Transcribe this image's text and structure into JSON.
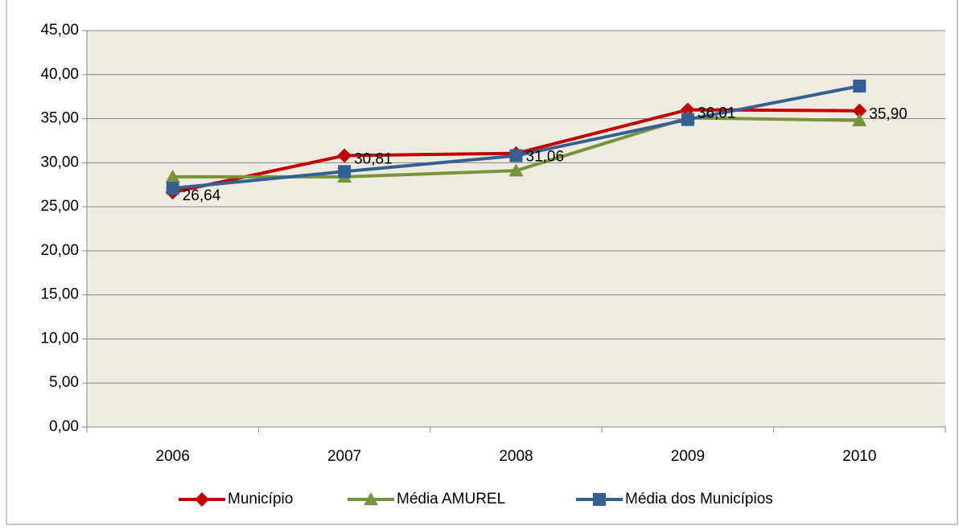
{
  "chart_data": {
    "type": "line",
    "categories": [
      "2006",
      "2007",
      "2008",
      "2009",
      "2010"
    ],
    "series": [
      {
        "name": "Município",
        "color": "#c00000",
        "marker": "diamond",
        "values": [
          26.64,
          30.81,
          31.06,
          36.01,
          35.9
        ],
        "value_labels": [
          "26,64",
          "30,81",
          "31,06",
          "36,01",
          "35,90"
        ]
      },
      {
        "name": "Média AMUREL",
        "color": "#77933c",
        "marker": "triangle",
        "values": [
          28.4,
          28.4,
          29.1,
          35.1,
          34.8
        ]
      },
      {
        "name": "Média dos Municípios",
        "color": "#376092",
        "marker": "square",
        "values": [
          27.1,
          29.0,
          30.8,
          34.9,
          38.7
        ]
      }
    ],
    "ylim": [
      0,
      45
    ],
    "yticks": [
      {
        "value": 0,
        "label": "0,00"
      },
      {
        "value": 5,
        "label": "5,00"
      },
      {
        "value": 10,
        "label": "10,00"
      },
      {
        "value": 15,
        "label": "15,00"
      },
      {
        "value": 20,
        "label": "20,00"
      },
      {
        "value": 25,
        "label": "25,00"
      },
      {
        "value": 30,
        "label": "30,00"
      },
      {
        "value": 35,
        "label": "35,00"
      },
      {
        "value": 40,
        "label": "40,00"
      },
      {
        "value": 45,
        "label": "45,00"
      }
    ],
    "grid": true,
    "legend": "bottom"
  }
}
